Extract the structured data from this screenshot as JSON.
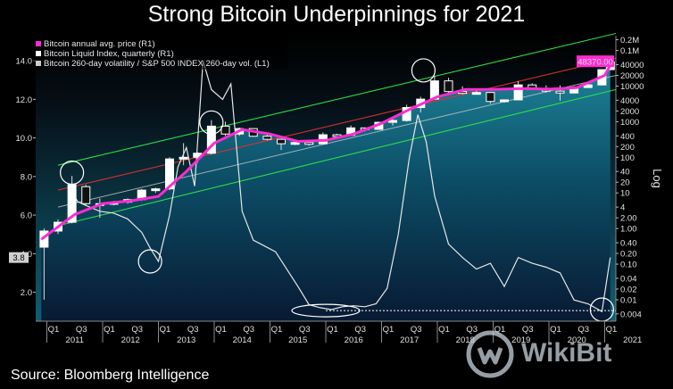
{
  "title": "Strong Bitcoin Underpinnings for 2021",
  "source": "Source: Bloomberg Intelligence",
  "watermark": "WikiBit",
  "colors": {
    "background_top": "#000000",
    "background_bottom": "#0f5f73",
    "annual_avg": "#ff2bd0",
    "liquid_index": "#ffffff",
    "volatility": "#e6e6e6",
    "channel_outer": "#2ee64a",
    "channel_inner": "#e03030",
    "channel_mid": "#c8c8c8",
    "price_box_bg": "#ff2bd0"
  },
  "chart_data": {
    "type": "line",
    "title": "Strong Bitcoin Underpinnings for 2021",
    "legend": [
      {
        "name": "Bitcoin annual avg. price (R1)",
        "color": "#ff2bd0"
      },
      {
        "name": "Bitcoin Liquid Index, quarterly (R1)",
        "color": "#ffffff"
      },
      {
        "name": "Bitcoin 260-day volatility / S&P 500 INDEX 260-day vol. (L1)",
        "color": "#cccccc"
      }
    ],
    "legend_position": "top-left",
    "left_axis": {
      "ticks": [
        "2.0",
        "4.0",
        "6.0",
        "8.0",
        "10.0",
        "12.0",
        "14.0"
      ],
      "values": [
        2,
        4,
        6,
        8,
        10,
        12,
        14
      ],
      "range": [
        0.5,
        15.3
      ],
      "last_value_label": "3.8",
      "last_value": 3.8
    },
    "right_axis": {
      "scale": "log",
      "label": "Log",
      "ticks": [
        "0.2M",
        "0.1M",
        "40000",
        "20000",
        "10000",
        "4000",
        "2000",
        "1000",
        "400",
        "200",
        "100",
        "40",
        "20",
        "10",
        "4",
        "2.00",
        "1.00",
        "0.40",
        "0.20",
        "0.10",
        "0.04",
        "0.02",
        "0.01",
        "0.004"
      ],
      "values": [
        200000,
        100000,
        40000,
        20000,
        10000,
        4000,
        2000,
        1000,
        400,
        200,
        100,
        40,
        20,
        10,
        4,
        2,
        1,
        0.4,
        0.2,
        0.1,
        0.04,
        0.02,
        0.01,
        0.004
      ],
      "range": [
        0.0025,
        260000
      ],
      "last_value_label": "48370.00",
      "last_value": 48370
    },
    "x_axis": {
      "quarter_labels": [
        "Q1",
        "Q3",
        "Q1",
        "Q3",
        "Q1",
        "Q3",
        "Q1",
        "Q3",
        "Q1",
        "Q3",
        "Q1",
        "Q3",
        "Q1",
        "Q3",
        "Q1",
        "Q3",
        "Q1",
        "Q3",
        "Q1",
        "Q3",
        "Q1"
      ],
      "years": [
        "2011",
        "2012",
        "2013",
        "2014",
        "2015",
        "2016",
        "2017",
        "2018",
        "2019",
        "2020",
        "2021"
      ],
      "range": [
        2010.8,
        2021.2
      ]
    },
    "series": [
      {
        "name": "Bitcoin annual avg. price (R1)",
        "axis": "right",
        "x": [
          2010.9,
          2011.5,
          2012.0,
          2012.5,
          2013.0,
          2013.5,
          2014.0,
          2014.5,
          2015.0,
          2015.5,
          2016.0,
          2016.5,
          2017.0,
          2017.5,
          2018.0,
          2018.5,
          2019.0,
          2019.5,
          2020.0,
          2020.5,
          2021.0,
          2021.1
        ],
        "values": [
          0.5,
          2.5,
          5,
          6,
          8,
          40,
          250,
          600,
          450,
          280,
          300,
          450,
          900,
          2200,
          5000,
          8000,
          8000,
          8500,
          8200,
          9000,
          20000,
          38000
        ]
      },
      {
        "name": "Bitcoin Liquid Index, quarterly (R1)",
        "axis": "right",
        "type": "candlestick",
        "candles": [
          {
            "x": 2010.95,
            "open": 0.3,
            "close": 0.85,
            "high": 1.0,
            "low": 0.01
          },
          {
            "x": 2011.2,
            "open": 0.85,
            "close": 1.5,
            "high": 1.8,
            "low": 0.7
          },
          {
            "x": 2011.45,
            "open": 1.5,
            "close": 17,
            "high": 30,
            "low": 1.4
          },
          {
            "x": 2011.7,
            "open": 15,
            "close": 5,
            "high": 17,
            "low": 4.5
          },
          {
            "x": 2011.95,
            "open": 5,
            "close": 5,
            "high": 7,
            "low": 2
          },
          {
            "x": 2012.2,
            "open": 4.8,
            "close": 5.5,
            "high": 6,
            "low": 4.5
          },
          {
            "x": 2012.45,
            "open": 5.5,
            "close": 6.5,
            "high": 7,
            "low": 5
          },
          {
            "x": 2012.7,
            "open": 6.5,
            "close": 12,
            "high": 13,
            "low": 6
          },
          {
            "x": 2012.95,
            "open": 12,
            "close": 13,
            "high": 14,
            "low": 10
          },
          {
            "x": 2013.2,
            "open": 13,
            "close": 90,
            "high": 100,
            "low": 12
          },
          {
            "x": 2013.45,
            "open": 90,
            "close": 100,
            "high": 250,
            "low": 60
          },
          {
            "x": 2013.7,
            "open": 100,
            "close": 130,
            "high": 140,
            "low": 70
          },
          {
            "x": 2013.95,
            "open": 130,
            "close": 750,
            "high": 1100,
            "low": 120
          },
          {
            "x": 2014.2,
            "open": 750,
            "close": 450,
            "high": 1000,
            "low": 400
          },
          {
            "x": 2014.45,
            "open": 450,
            "close": 640,
            "high": 680,
            "low": 400
          },
          {
            "x": 2014.7,
            "open": 640,
            "close": 390,
            "high": 650,
            "low": 380
          },
          {
            "x": 2014.95,
            "open": 390,
            "close": 320,
            "high": 450,
            "low": 300
          },
          {
            "x": 2015.2,
            "open": 320,
            "close": 240,
            "high": 330,
            "low": 160
          },
          {
            "x": 2015.45,
            "open": 240,
            "close": 260,
            "high": 270,
            "low": 220
          },
          {
            "x": 2015.7,
            "open": 260,
            "close": 240,
            "high": 300,
            "low": 210
          },
          {
            "x": 2015.95,
            "open": 240,
            "close": 430,
            "high": 500,
            "low": 230
          },
          {
            "x": 2016.2,
            "open": 430,
            "close": 415,
            "high": 460,
            "low": 360
          },
          {
            "x": 2016.45,
            "open": 415,
            "close": 670,
            "high": 780,
            "low": 410
          },
          {
            "x": 2016.7,
            "open": 670,
            "close": 610,
            "high": 680,
            "low": 530
          },
          {
            "x": 2016.95,
            "open": 610,
            "close": 960,
            "high": 980,
            "low": 600
          },
          {
            "x": 2017.2,
            "open": 960,
            "close": 1080,
            "high": 1300,
            "low": 780
          },
          {
            "x": 2017.45,
            "open": 1080,
            "close": 2500,
            "high": 3000,
            "low": 1000
          },
          {
            "x": 2017.7,
            "open": 2500,
            "close": 4300,
            "high": 5000,
            "low": 1800
          },
          {
            "x": 2017.95,
            "open": 4300,
            "close": 14000,
            "high": 19500,
            "low": 4100
          },
          {
            "x": 2018.2,
            "open": 14000,
            "close": 7000,
            "high": 17000,
            "low": 6000
          },
          {
            "x": 2018.45,
            "open": 7000,
            "close": 6400,
            "high": 9900,
            "low": 5800
          },
          {
            "x": 2018.7,
            "open": 6400,
            "close": 6600,
            "high": 8400,
            "low": 5900
          },
          {
            "x": 2018.95,
            "open": 6600,
            "close": 3700,
            "high": 6800,
            "low": 3200
          },
          {
            "x": 2019.2,
            "open": 3700,
            "close": 4100,
            "high": 4200,
            "low": 3400
          },
          {
            "x": 2019.45,
            "open": 4100,
            "close": 10800,
            "high": 13800,
            "low": 4000
          },
          {
            "x": 2019.7,
            "open": 10800,
            "close": 8300,
            "high": 12000,
            "low": 7800
          },
          {
            "x": 2019.95,
            "open": 8300,
            "close": 7200,
            "high": 10500,
            "low": 6500
          },
          {
            "x": 2020.2,
            "open": 7200,
            "close": 6400,
            "high": 10500,
            "low": 3900
          },
          {
            "x": 2020.45,
            "open": 6400,
            "close": 9100,
            "high": 10000,
            "low": 6300
          },
          {
            "x": 2020.7,
            "open": 9100,
            "close": 10800,
            "high": 12400,
            "low": 9000
          },
          {
            "x": 2020.95,
            "open": 10800,
            "close": 29000,
            "high": 29300,
            "low": 10400
          },
          {
            "x": 2021.1,
            "open": 29000,
            "close": 48370,
            "high": 58000,
            "low": 28000
          }
        ]
      },
      {
        "name": "Bitcoin 260-day volatility / S&P 500 INDEX 260-day vol. (L1)",
        "axis": "left",
        "x": [
          2011.4,
          2011.55,
          2011.7,
          2011.95,
          2012.2,
          2012.45,
          2012.7,
          2012.85,
          2013.0,
          2013.2,
          2013.35,
          2013.5,
          2013.65,
          2013.8,
          2013.95,
          2014.15,
          2014.3,
          2014.5,
          2014.7,
          2014.9,
          2015.1,
          2015.3,
          2015.5,
          2015.7,
          2015.9,
          2016.1,
          2016.3,
          2016.5,
          2016.7,
          2016.9,
          2017.1,
          2017.3,
          2017.5,
          2017.65,
          2017.8,
          2017.95,
          2018.2,
          2018.45,
          2018.7,
          2018.95,
          2019.2,
          2019.45,
          2019.7,
          2019.95,
          2020.2,
          2020.45,
          2020.7,
          2020.95,
          2021.1
        ],
        "values": [
          7.5,
          6.7,
          6.5,
          6.2,
          6.1,
          5.8,
          5.1,
          4.3,
          3.6,
          6.0,
          8.5,
          9.5,
          7.5,
          14.0,
          12.5,
          12.0,
          12.8,
          6.2,
          4.7,
          4.4,
          4.1,
          3.2,
          2.3,
          1.35,
          1.2,
          1.1,
          1.25,
          1.3,
          1.25,
          1.4,
          2.2,
          5.0,
          9.0,
          11.2,
          9.8,
          7.0,
          4.5,
          3.8,
          3.2,
          3.5,
          2.3,
          3.8,
          3.5,
          3.3,
          3.0,
          1.6,
          1.4,
          1.0,
          3.8
        ]
      },
      {
        "name": "Reference level",
        "axis": "left",
        "x": [
          2016.0,
          2021.2
        ],
        "values": [
          1.05,
          1.05
        ]
      }
    ],
    "trend_channel": {
      "x": [
        2011.2,
        2021.2
      ],
      "lines": [
        {
          "role": "upper outer",
          "values": [
            60,
            300000
          ]
        },
        {
          "role": "upper inner",
          "values": [
            12,
            60000
          ]
        },
        {
          "role": "middle",
          "values": [
            4,
            20000
          ]
        },
        {
          "role": "lower",
          "values": [
            1.2,
            8000
          ]
        }
      ]
    },
    "annotation_circles": [
      {
        "x": 2011.45,
        "y_left": 8.2
      },
      {
        "x": 2012.85,
        "y_left": 3.6
      },
      {
        "x": 2013.95,
        "y_left": 10.8
      },
      {
        "x": 2016.0,
        "y_left": 1.05,
        "shape": "ellipse"
      },
      {
        "x": 2017.75,
        "y_left": 13.5
      },
      {
        "x": 2020.95,
        "y_left": 1.1
      }
    ]
  }
}
